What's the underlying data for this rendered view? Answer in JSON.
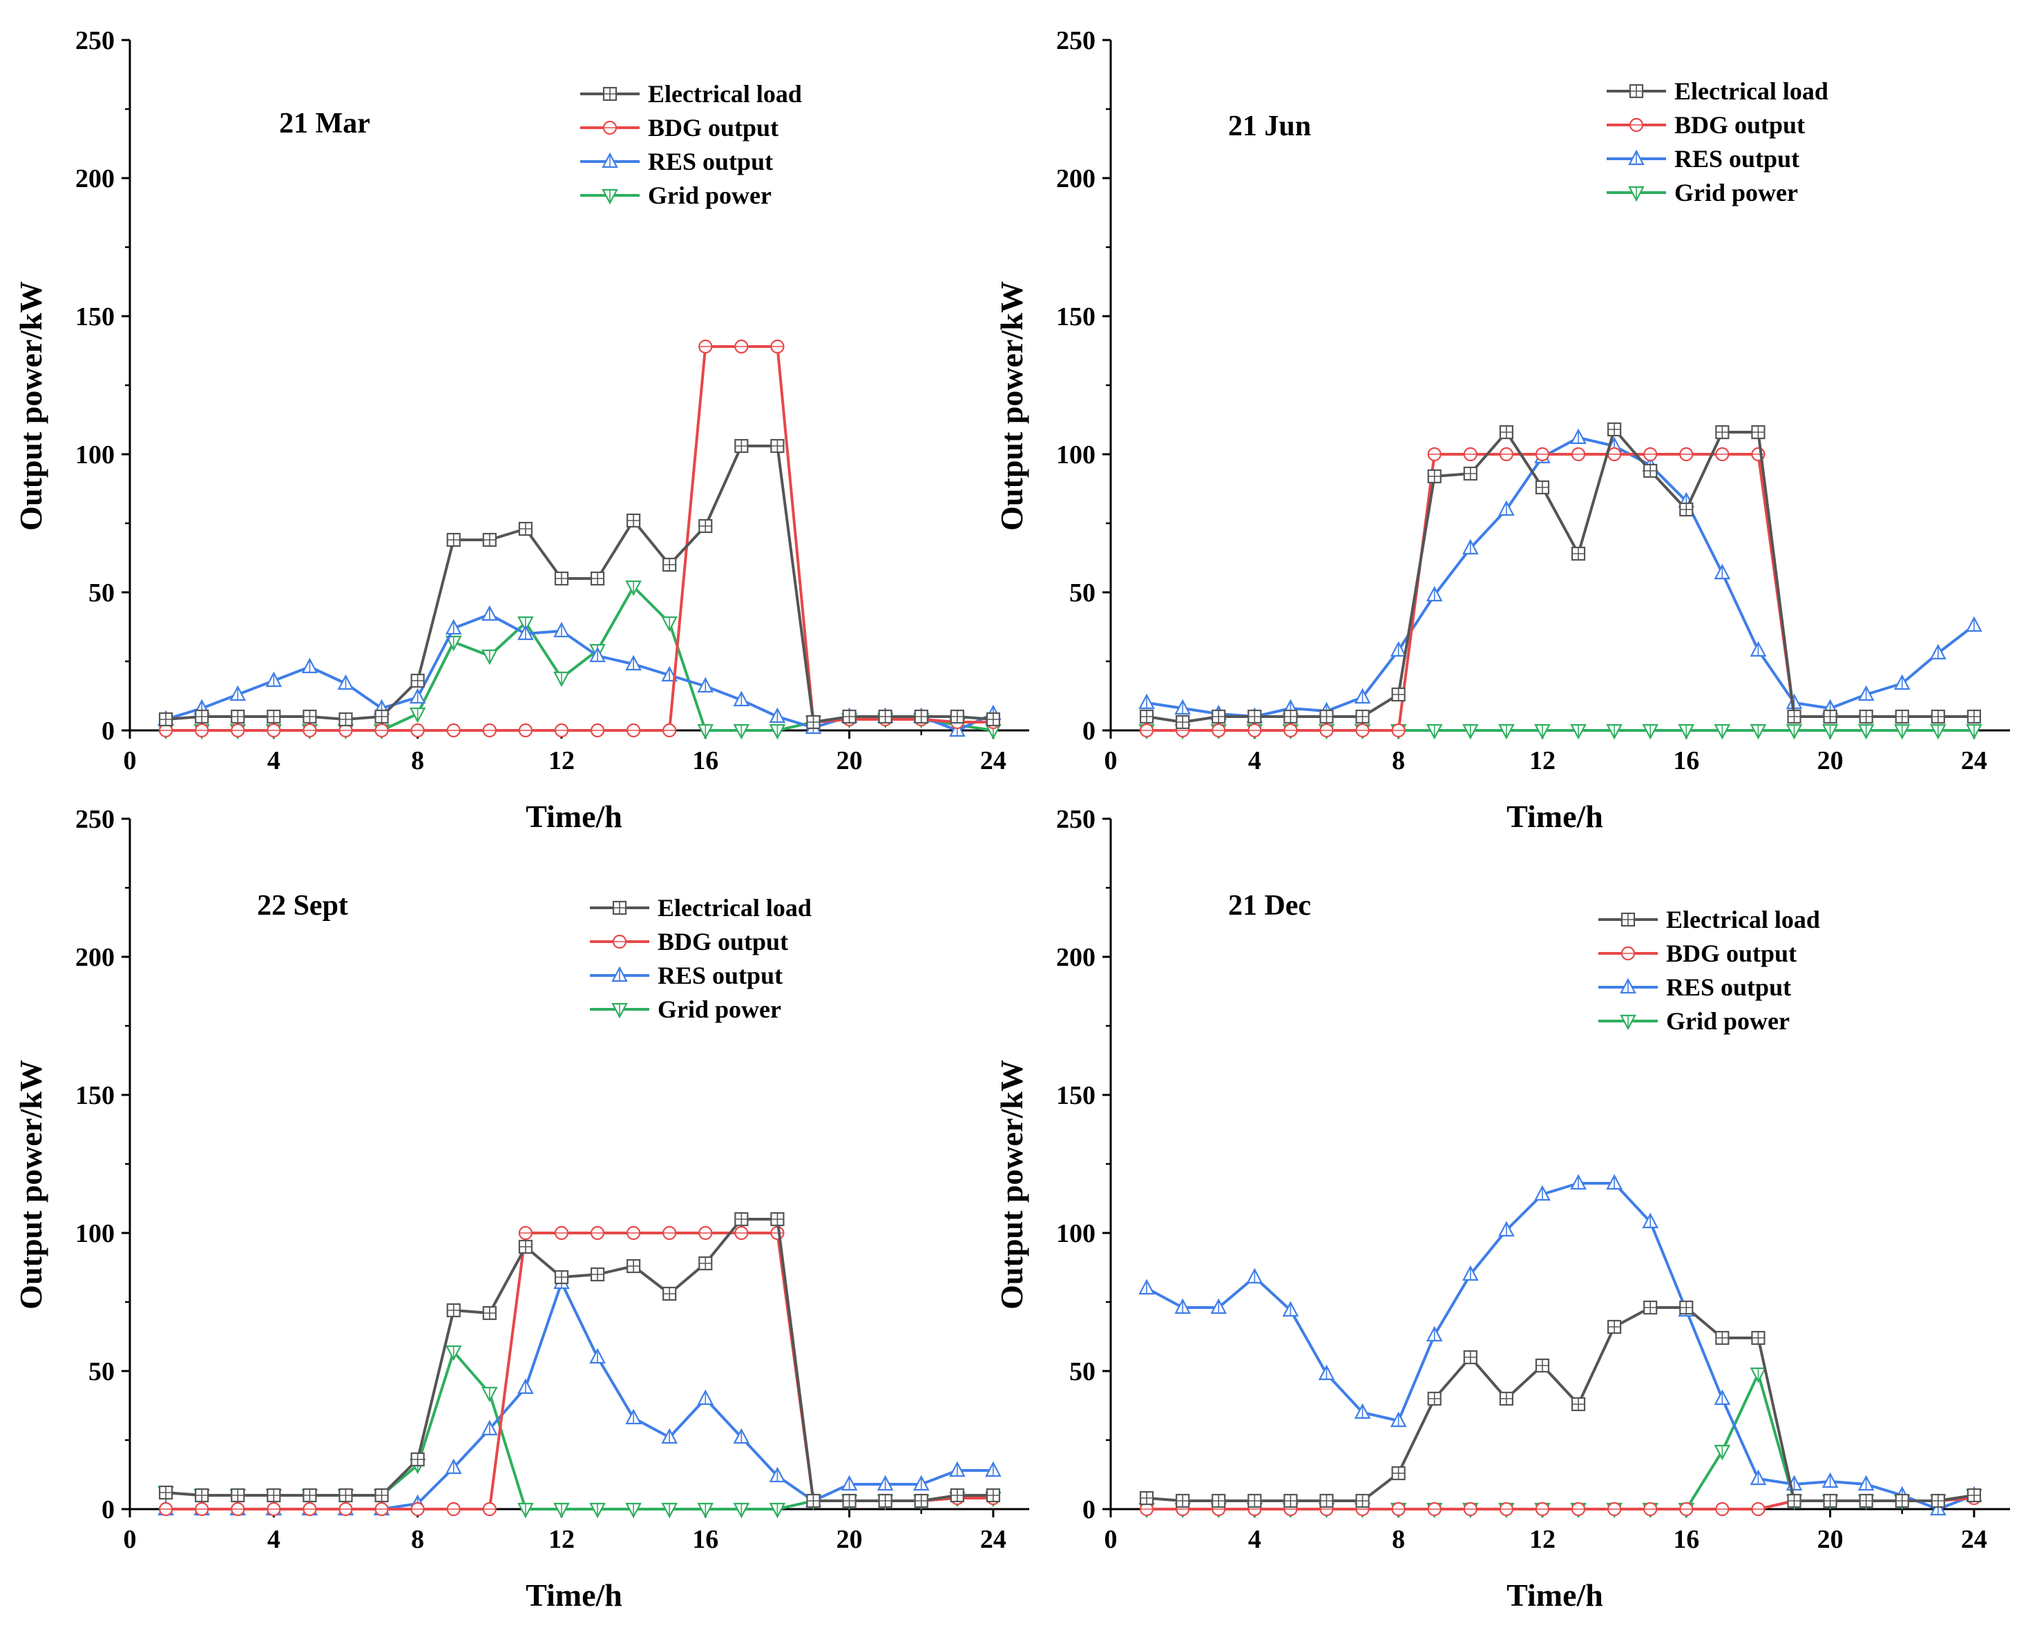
{
  "chart_data": [
    {
      "type": "line",
      "title": "21 Mar",
      "xlabel": "Time/h",
      "ylabel": "Output power/kW",
      "xlim": [
        0,
        25
      ],
      "ylim": [
        0,
        250
      ],
      "xticks": [
        0,
        4,
        8,
        12,
        16,
        20,
        24
      ],
      "yticks": [
        0,
        50,
        100,
        150,
        200,
        250
      ],
      "grid": false,
      "legend": "top-right",
      "x": [
        1,
        2,
        3,
        4,
        5,
        6,
        7,
        8,
        9,
        10,
        11,
        12,
        13,
        14,
        15,
        16,
        17,
        18,
        19,
        20,
        21,
        22,
        23,
        24
      ],
      "series": [
        {
          "name": "Electrical load",
          "color": "#555555",
          "marker": "square",
          "values": [
            4,
            5,
            5,
            5,
            5,
            4,
            5,
            18,
            69,
            69,
            73,
            55,
            55,
            76,
            60,
            74,
            103,
            103,
            3,
            5,
            5,
            5,
            5,
            4
          ]
        },
        {
          "name": "BDG output",
          "color": "#e8484a",
          "marker": "circle",
          "values": [
            0,
            0,
            0,
            0,
            0,
            0,
            0,
            0,
            0,
            0,
            0,
            0,
            0,
            0,
            0,
            139,
            139,
            139,
            3,
            4,
            4,
            4,
            3,
            3
          ]
        },
        {
          "name": "RES output",
          "color": "#3f7ee8",
          "marker": "triangle-up",
          "values": [
            4,
            8,
            13,
            18,
            23,
            17,
            8,
            12,
            37,
            42,
            35,
            36,
            27,
            24,
            20,
            16,
            11,
            5,
            1,
            5,
            5,
            5,
            0,
            6
          ]
        },
        {
          "name": "Grid power",
          "color": "#2eaf5f",
          "marker": "triangle-down",
          "values": [
            0,
            0,
            0,
            0,
            0,
            0,
            0,
            6,
            32,
            27,
            39,
            19,
            29,
            52,
            39,
            0,
            0,
            0,
            3,
            4,
            4,
            4,
            2,
            0
          ]
        }
      ]
    },
    {
      "type": "line",
      "title": "21 Jun",
      "xlabel": "Time/h",
      "ylabel": "Output power/kW",
      "xlim": [
        0,
        25
      ],
      "ylim": [
        0,
        250
      ],
      "xticks": [
        0,
        4,
        8,
        12,
        16,
        20,
        24
      ],
      "yticks": [
        0,
        50,
        100,
        150,
        200,
        250
      ],
      "grid": false,
      "legend": "top-right",
      "x": [
        1,
        2,
        3,
        4,
        5,
        6,
        7,
        8,
        9,
        10,
        11,
        12,
        13,
        14,
        15,
        16,
        17,
        18,
        19,
        20,
        21,
        22,
        23,
        24
      ],
      "series": [
        {
          "name": "Electrical load",
          "color": "#555555",
          "marker": "square",
          "values": [
            5,
            3,
            5,
            5,
            5,
            5,
            5,
            13,
            92,
            93,
            108,
            88,
            64,
            109,
            94,
            80,
            108,
            108,
            5,
            5,
            5,
            5,
            5,
            5
          ]
        },
        {
          "name": "BDG output",
          "color": "#e8484a",
          "marker": "circle",
          "values": [
            0,
            0,
            0,
            0,
            0,
            0,
            0,
            0,
            100,
            100,
            100,
            100,
            100,
            100,
            100,
            100,
            100,
            100,
            5,
            5,
            5,
            5,
            5,
            5
          ]
        },
        {
          "name": "RES output",
          "color": "#3f7ee8",
          "marker": "triangle-up",
          "values": [
            10,
            8,
            6,
            5,
            8,
            7,
            12,
            29,
            49,
            66,
            80,
            99,
            106,
            103,
            96,
            83,
            57,
            29,
            10,
            8,
            13,
            17,
            28,
            38
          ]
        },
        {
          "name": "Grid power",
          "color": "#2eaf5f",
          "marker": "triangle-down",
          "values": [
            0,
            0,
            0,
            0,
            0,
            0,
            0,
            0,
            0,
            0,
            0,
            0,
            0,
            0,
            0,
            0,
            0,
            0,
            0,
            0,
            0,
            0,
            0,
            0
          ]
        }
      ]
    },
    {
      "type": "line",
      "title": "22 Sept",
      "xlabel": "Time/h",
      "ylabel": "Output power/kW",
      "xlim": [
        0,
        25
      ],
      "ylim": [
        0,
        250
      ],
      "xticks": [
        0,
        4,
        8,
        12,
        16,
        20,
        24
      ],
      "yticks": [
        0,
        50,
        100,
        150,
        200,
        250
      ],
      "grid": false,
      "legend": "top-right",
      "x": [
        1,
        2,
        3,
        4,
        5,
        6,
        7,
        8,
        9,
        10,
        11,
        12,
        13,
        14,
        15,
        16,
        17,
        18,
        19,
        20,
        21,
        22,
        23,
        24
      ],
      "series": [
        {
          "name": "Electrical load",
          "color": "#555555",
          "marker": "square",
          "values": [
            6,
            5,
            5,
            5,
            5,
            5,
            5,
            18,
            72,
            71,
            95,
            84,
            85,
            88,
            78,
            89,
            105,
            105,
            3,
            3,
            3,
            3,
            5,
            5
          ]
        },
        {
          "name": "BDG output",
          "color": "#e8484a",
          "marker": "circle",
          "values": [
            0,
            0,
            0,
            0,
            0,
            0,
            0,
            0,
            0,
            0,
            100,
            100,
            100,
            100,
            100,
            100,
            100,
            100,
            3,
            3,
            3,
            3,
            4,
            4
          ]
        },
        {
          "name": "RES output",
          "color": "#3f7ee8",
          "marker": "triangle-up",
          "values": [
            0,
            0,
            0,
            0,
            0,
            0,
            0,
            2,
            15,
            29,
            44,
            82,
            55,
            33,
            26,
            40,
            26,
            12,
            3,
            9,
            9,
            9,
            14,
            14
          ]
        },
        {
          "name": "Grid power",
          "color": "#2eaf5f",
          "marker": "triangle-down",
          "values": [
            6,
            5,
            5,
            5,
            5,
            5,
            5,
            16,
            57,
            42,
            0,
            0,
            0,
            0,
            0,
            0,
            0,
            0,
            3,
            3,
            3,
            3,
            4,
            4
          ]
        }
      ]
    },
    {
      "type": "line",
      "title": "21 Dec",
      "xlabel": "Time/h",
      "ylabel": "Output power/kW",
      "xlim": [
        0,
        25
      ],
      "ylim": [
        0,
        250
      ],
      "xticks": [
        0,
        4,
        8,
        12,
        16,
        20,
        24
      ],
      "yticks": [
        0,
        50,
        100,
        150,
        200,
        250
      ],
      "grid": false,
      "legend": "top-right",
      "x": [
        1,
        2,
        3,
        4,
        5,
        6,
        7,
        8,
        9,
        10,
        11,
        12,
        13,
        14,
        15,
        16,
        17,
        18,
        19,
        20,
        21,
        22,
        23,
        24
      ],
      "series": [
        {
          "name": "Electrical load",
          "color": "#555555",
          "marker": "square",
          "values": [
            4,
            3,
            3,
            3,
            3,
            3,
            3,
            13,
            40,
            55,
            40,
            52,
            38,
            66,
            73,
            73,
            62,
            62,
            3,
            3,
            3,
            3,
            3,
            5
          ]
        },
        {
          "name": "BDG output",
          "color": "#e8484a",
          "marker": "circle",
          "values": [
            0,
            0,
            0,
            0,
            0,
            0,
            0,
            0,
            0,
            0,
            0,
            0,
            0,
            0,
            0,
            0,
            0,
            0,
            3,
            3,
            3,
            3,
            3,
            4
          ]
        },
        {
          "name": "RES output",
          "color": "#3f7ee8",
          "marker": "triangle-up",
          "values": [
            80,
            73,
            73,
            84,
            72,
            49,
            35,
            32,
            63,
            85,
            101,
            114,
            118,
            118,
            104,
            72,
            40,
            11,
            9,
            10,
            9,
            5,
            0,
            5
          ]
        },
        {
          "name": "Grid power",
          "color": "#2eaf5f",
          "marker": "triangle-down",
          "values": [
            0,
            0,
            0,
            0,
            0,
            0,
            0,
            0,
            0,
            0,
            0,
            0,
            0,
            0,
            0,
            0,
            21,
            49,
            3,
            3,
            3,
            3,
            3,
            5
          ]
        }
      ]
    }
  ]
}
